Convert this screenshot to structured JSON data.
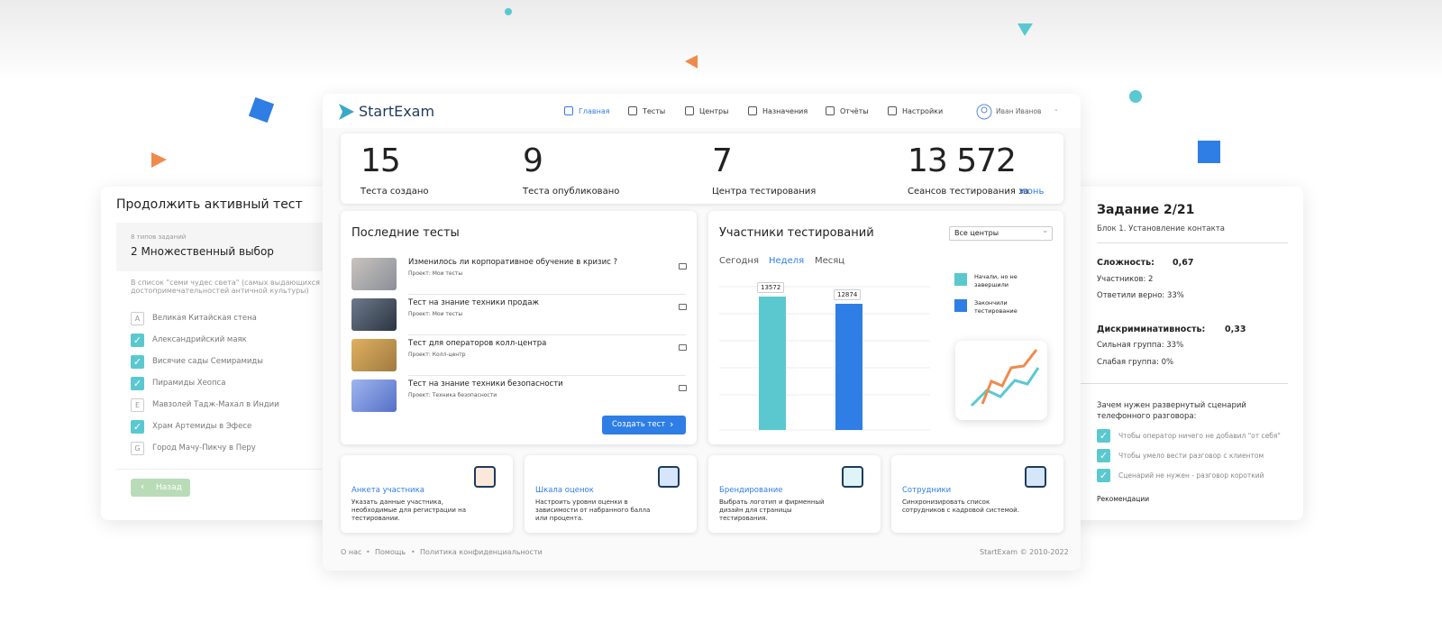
{
  "left_card": {
    "title": "Продолжить активный тест",
    "meta": "8 типов заданий",
    "question_type": "2 Множественный выбор",
    "prompt": "В список \"семи чудес света\" (самых выдающихся достопримечательностей античной культуры) входят",
    "options": [
      {
        "letter": "A",
        "text": "Великая Китайская стена"
      },
      {
        "checked": true,
        "text": "Александрийский маяк"
      },
      {
        "checked": true,
        "text": "Висячие сады Семирамиды"
      },
      {
        "checked": true,
        "text": "Пирамиды Хеопса"
      },
      {
        "letter": "E",
        "text": "Мавзолей Тадж-Махал в Индии"
      },
      {
        "checked": true,
        "text": "Храм Артемиды в Эфесе"
      },
      {
        "letter": "G",
        "text": "Город Мачу-Пикчу в Перу"
      }
    ],
    "back": "Назад"
  },
  "header": {
    "logo": "StartExam",
    "nav": [
      "Главная",
      "Тесты",
      "Центры",
      "Назначения",
      "Отчёты",
      "Настройки"
    ],
    "active_nav": 0,
    "user": "Иван Иванов"
  },
  "stats": [
    {
      "value": "15",
      "label": "Теста создано"
    },
    {
      "value": "9",
      "label": "Теста опубликовано"
    },
    {
      "value": "7",
      "label": "Центра тестирования"
    },
    {
      "value": "13 572",
      "label": "Сеансов тестирования за",
      "link": "июнь"
    }
  ],
  "recent": {
    "title": "Последние тесты",
    "items": [
      {
        "title": "Изменилось ли корпоративное обучение в кризис ?",
        "project": "Проект: Мои тесты"
      },
      {
        "title": "Тест на знание техники продаж",
        "project": "Проект: Мои тесты"
      },
      {
        "title": "Тест для операторов колл-центра",
        "project": "Проект: Колл-центр"
      },
      {
        "title": "Тест на знание техники безопасности",
        "project": "Проект: Техника безопасности"
      }
    ],
    "button": "Создать тест"
  },
  "participants": {
    "title": "Участники тестирований",
    "select": "Все центры",
    "tabs": [
      "Сегодня",
      "Неделя",
      "Месяц"
    ],
    "active_tab": 1,
    "series": [
      {
        "name": "Начали, но не завершили",
        "color": "#5bc8d0",
        "value": 13572
      },
      {
        "name": "Закончили тестирование",
        "color": "#2f7ee6",
        "value": 12874
      }
    ]
  },
  "features": [
    {
      "title": "Анкета участника",
      "text": "Указать данные участника, необходимые для регистрации на тестировании."
    },
    {
      "title": "Шкала оценок",
      "text": "Настроить уровни оценки в зависимости от набранного балла или процента."
    },
    {
      "title": "Брендирование",
      "text": "Выбрать логотип и фирменный дизайн для страницы тестирования."
    },
    {
      "title": "Сотрудники",
      "text": "Синхронизировать список сотрудников с кадровой системой."
    }
  ],
  "footer": {
    "links": [
      "О нас",
      "Помощь",
      "Политика конфиденциальности"
    ],
    "copyright": "StartExam © 2010-2022"
  },
  "right_card": {
    "title": "Задание 2/21",
    "block": "Блок 1. Установление контакта",
    "complexity_label": "Сложность:",
    "complexity": "0,67",
    "participants": "Участников: 2",
    "correct": "Ответили верно: 33%",
    "discr_label": "Дискриминативность:",
    "discr": "0,33",
    "strong": "Сильная группа: 33%",
    "weak": "Слабая группа: 0%",
    "question": "Зачем нужен развернутый сценарий телефонного разговора:",
    "answers": [
      "Чтобы оператор ничего не добавил \"от себя\"",
      "Чтобы умело вести разговор с клиентом",
      "Сценарий не нужен - разговор короткий"
    ],
    "recommend": "Рекомендации"
  }
}
